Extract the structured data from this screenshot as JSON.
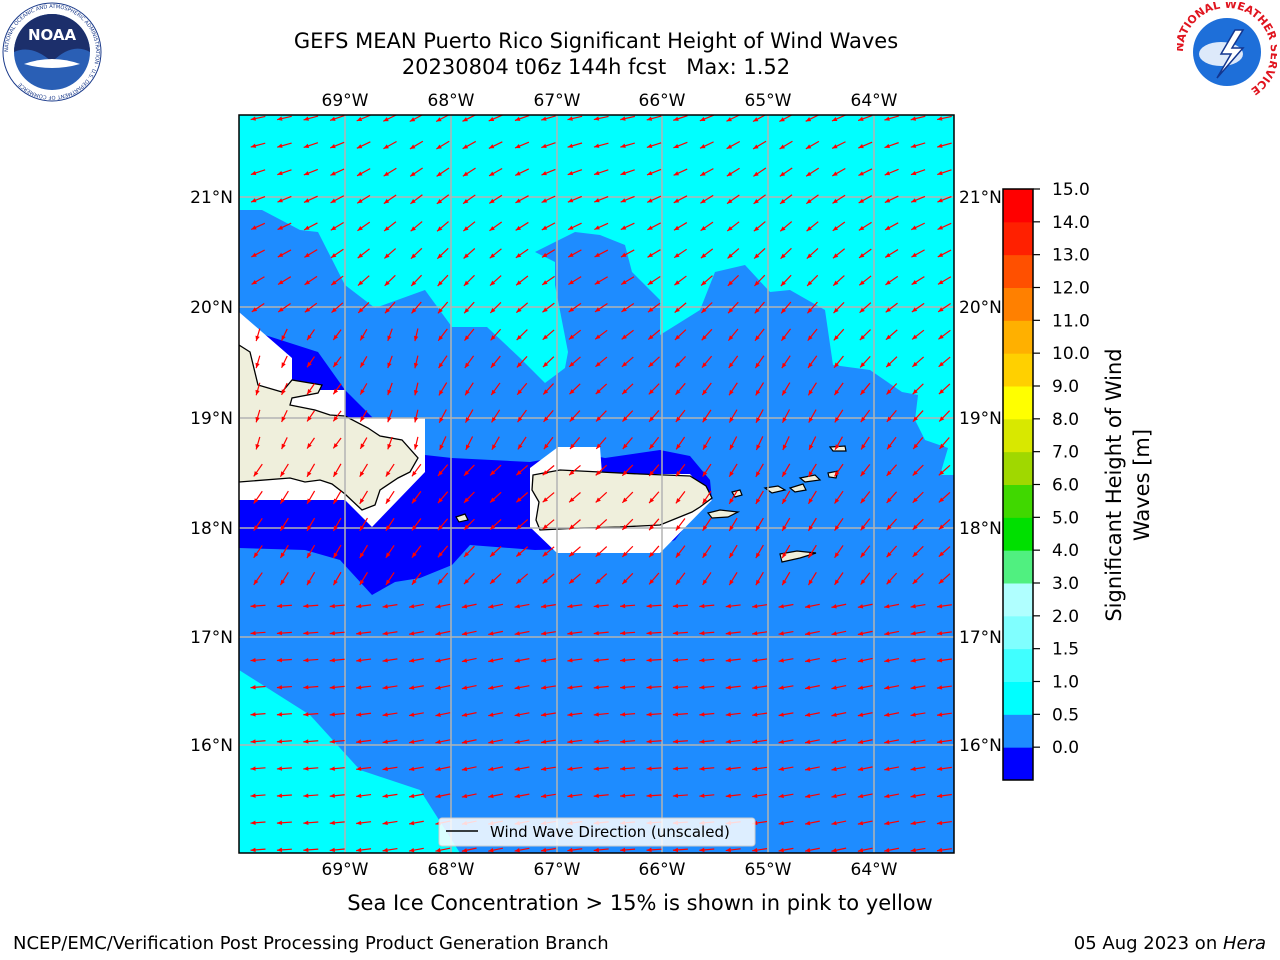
{
  "title": {
    "line1": "GEFS MEAN Puerto Rico Significant Height of Wind Waves",
    "line2": "20230804 t06z 144h fcst   Max: 1.52"
  },
  "map": {
    "lon_labels": [
      "69°W",
      "68°W",
      "67°W",
      "66°W",
      "65°W",
      "64°W"
    ],
    "lat_labels": [
      "21°N",
      "20°N",
      "19°N",
      "18°N",
      "17°N",
      "16°N"
    ],
    "legend": "Wind Wave Direction (unscaled)"
  },
  "colorbar": {
    "label_line1": "Significant Height of Wind",
    "label_line2": "Waves [m]",
    "ticks": [
      "15.0",
      "14.0",
      "13.0",
      "12.0",
      "11.0",
      "10.0",
      "9.0",
      "8.0",
      "7.0",
      "6.0",
      "5.0",
      "4.0",
      "3.0",
      "2.0",
      "1.5",
      "1.0",
      "0.5",
      "0.0"
    ],
    "colors": [
      "#0000ff",
      "#1e8cff",
      "#00ffff",
      "#40ffff",
      "#80ffff",
      "#b0ffff",
      "#50f080",
      "#00e000",
      "#40d800",
      "#a0d800",
      "#d8e800",
      "#ffff00",
      "#ffd000",
      "#ffb000",
      "#ff8000",
      "#ff5000",
      "#ff2000",
      "#ff0000"
    ]
  },
  "caption": "Sea Ice Concentration > 15% is shown in pink to yellow",
  "footer": {
    "left": "NCEP/EMC/Verification Post Processing Product Generation Branch",
    "right_prefix": "05 Aug 2023 on ",
    "right_host": "Hera"
  },
  "logos": {
    "noaa": "NOAA",
    "noaa_ring": "NATIONAL OCEANIC AND ATMOSPHERIC ADMINISTRATION · U.S. DEPARTMENT OF COMMERCE",
    "nws_ring": "NATIONAL WEATHER SERVICE"
  },
  "styles": {
    "arrow_color": "#ff0000",
    "land_color": "#efefdc"
  }
}
